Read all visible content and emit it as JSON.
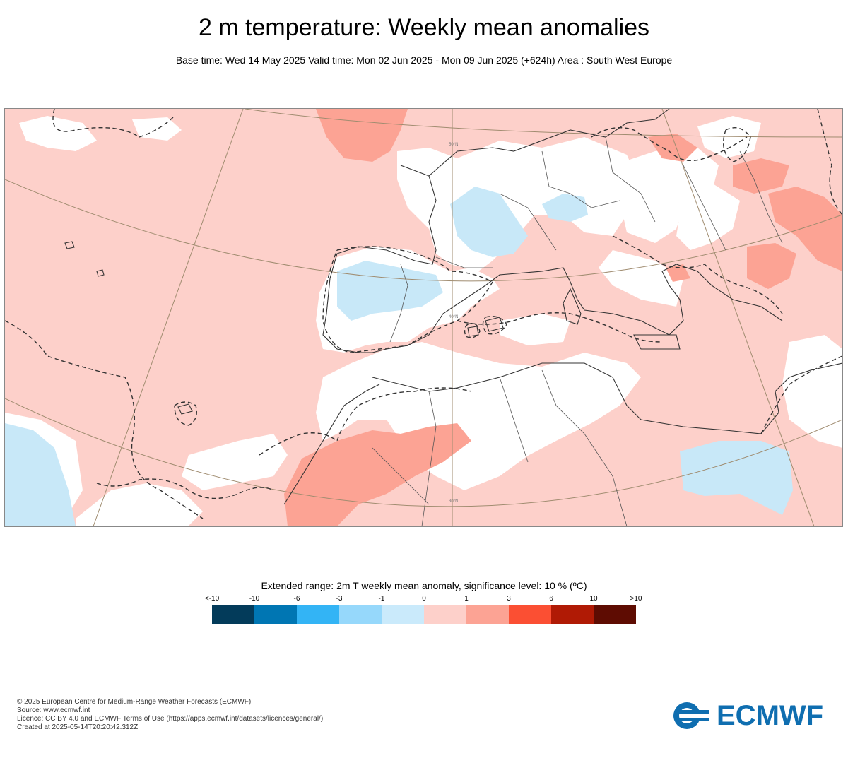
{
  "title": "2 m temperature: Weekly mean anomalies",
  "subtitle": "Base time: Wed 14 May 2025 Valid time: Mon 02 Jun 2025 - Mon 09 Jun 2025 (+624h) Area : South West Europe",
  "map": {
    "area": "South West Europe",
    "latitude_labels": [
      "50°N",
      "40°N",
      "30°N"
    ],
    "colors": {
      "land_border": "#333333",
      "graticule": "#a08c70",
      "base_anomaly": "#fdd0ca",
      "warm_anomaly": "#fca394",
      "neutral": "#ffffff",
      "cool_anomaly": "#c8e8f8"
    }
  },
  "legend": {
    "title": "Extended range: 2m T weekly mean anomaly, significance level: 10 % (ºC)",
    "tick_labels": [
      "<-10",
      "-10",
      "-6",
      "-3",
      "-1",
      "0",
      "1",
      "3",
      "6",
      "10",
      ">10"
    ],
    "colors": [
      "#033b5a",
      "#0076b3",
      "#33b4f5",
      "#96d8fb",
      "#caeafb",
      "#fdd0ca",
      "#fca394",
      "#fb4f33",
      "#b01a05",
      "#5e0c02"
    ]
  },
  "footer": {
    "lines": [
      "© 2025 European Centre for Medium-Range Weather Forecasts (ECMWF)",
      "Source: www.ecmwf.int",
      "Licence: CC BY 4.0 and ECMWF Terms of Use (https://apps.ecmwf.int/datasets/licences/general/)",
      "Created at 2025-05-14T20:20:42.312Z"
    ]
  },
  "logo": {
    "text": "ECMWF",
    "color": "#0f6eb0"
  }
}
